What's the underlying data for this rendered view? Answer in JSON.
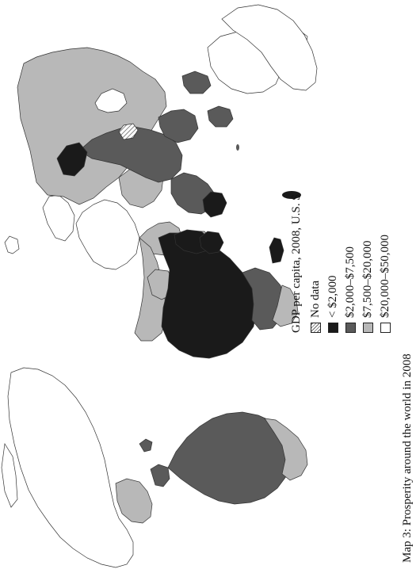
{
  "caption": "Map 3: Prosperity around the world in 2008",
  "legend": {
    "title": "GDP per capita, 2008, U.S. $",
    "items": [
      {
        "label": "No data",
        "fill": "hatch"
      },
      {
        "label": "< $2,000",
        "fill": "#1a1a1a"
      },
      {
        "label": "$2,000–$7,500",
        "fill": "#5a5a5a"
      },
      {
        "label": "$7,500–$20,000",
        "fill": "#b8b8b8"
      },
      {
        "label": "$20,000–$50,000",
        "fill": "#ffffff"
      }
    ]
  },
  "colors": {
    "very_low": "#1a1a1a",
    "low": "#5a5a5a",
    "mid": "#b8b8b8",
    "high": "#ffffff",
    "border": "#333333"
  }
}
